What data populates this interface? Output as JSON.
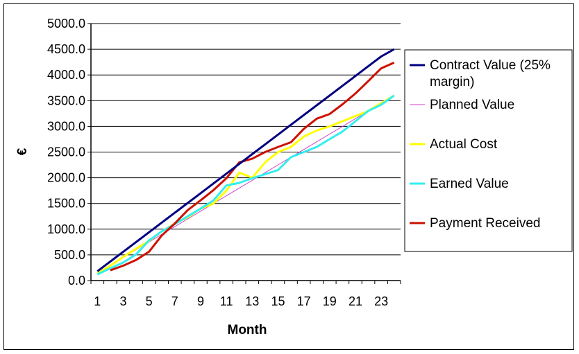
{
  "chart_data": {
    "type": "line",
    "title": "",
    "xlabel": "Month",
    "ylabel": "€",
    "ylim": [
      0,
      5000
    ],
    "xlim": [
      1,
      24
    ],
    "y_ticks": [
      "0.0",
      "500.0",
      "1000.0",
      "1500.0",
      "2000.0",
      "2500.0",
      "3000.0",
      "3500.0",
      "4000.0",
      "4500.0",
      "5000.0"
    ],
    "x_ticks": [
      "1",
      "3",
      "5",
      "7",
      "9",
      "11",
      "13",
      "15",
      "17",
      "19",
      "21",
      "23"
    ],
    "grid": "horizontal",
    "legend_position": "right",
    "x": [
      1,
      2,
      3,
      4,
      5,
      6,
      7,
      8,
      9,
      10,
      11,
      12,
      13,
      14,
      15,
      16,
      17,
      18,
      19,
      20,
      21,
      22,
      23,
      24
    ],
    "series": [
      {
        "name": "Contract Value (25% margin)",
        "color": "#000080",
        "values": [
          180,
          370,
          560,
          750,
          940,
          1130,
          1320,
          1510,
          1700,
          1890,
          2080,
          2270,
          2460,
          2650,
          2840,
          3030,
          3220,
          3410,
          3600,
          3790,
          3980,
          4170,
          4360,
          4500
        ]
      },
      {
        "name": "Planned Value",
        "color": "#cc44cc",
        "values": [
          150,
          300,
          450,
          600,
          750,
          900,
          1050,
          1200,
          1350,
          1500,
          1650,
          1800,
          1950,
          2100,
          2250,
          2400,
          2550,
          2700,
          2850,
          3000,
          3150,
          3300,
          3450,
          3600
        ]
      },
      {
        "name": "Actual Cost",
        "color": "#ffff00",
        "values": [
          140,
          290,
          460,
          620,
          770,
          960,
          1110,
          1230,
          1400,
          1500,
          1750,
          2100,
          2000,
          2300,
          2500,
          2600,
          2800,
          2920,
          3000,
          3100,
          3200,
          3300,
          3450,
          3600
        ]
      },
      {
        "name": "Earned Value",
        "color": "#33eeee",
        "values": [
          120,
          240,
          350,
          510,
          780,
          960,
          1100,
          1250,
          1400,
          1560,
          1850,
          1900,
          1990,
          2070,
          2150,
          2400,
          2500,
          2600,
          2750,
          2900,
          3100,
          3300,
          3420,
          3600
        ]
      },
      {
        "name": "Payment Received",
        "color": "#cc1100",
        "values": [
          null,
          200,
          290,
          400,
          560,
          880,
          1110,
          1370,
          1560,
          1760,
          1990,
          2300,
          2370,
          2500,
          2600,
          2690,
          2950,
          3150,
          3240,
          3430,
          3640,
          3880,
          4130,
          4240
        ]
      }
    ]
  }
}
